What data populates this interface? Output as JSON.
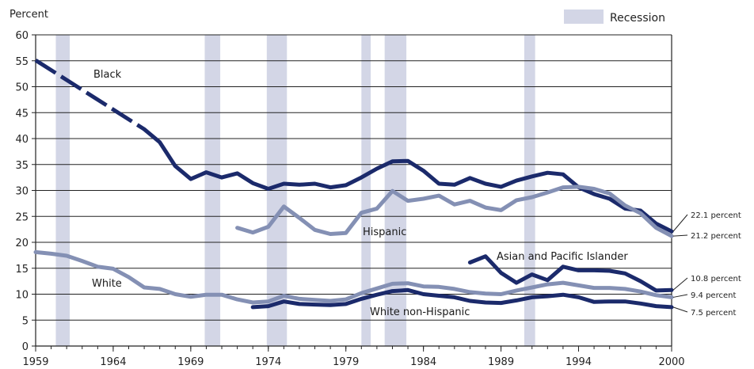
{
  "chart_data": {
    "type": "line",
    "title": "",
    "ylabel": "Percent",
    "xlabel": "",
    "xlim": [
      1959,
      2000
    ],
    "ylim": [
      0,
      60
    ],
    "x_ticks": [
      1959,
      1964,
      1969,
      1974,
      1979,
      1984,
      1989,
      1994,
      2000
    ],
    "y_ticks": [
      0,
      5,
      10,
      15,
      20,
      25,
      30,
      35,
      40,
      45,
      50,
      55,
      60
    ],
    "grid": "horizontal",
    "legend": {
      "label": "Recession",
      "placement": "top-right"
    },
    "recessions": [
      [
        1960.3,
        1961.2
      ],
      [
        1969.9,
        1970.9
      ],
      [
        1973.9,
        1975.2
      ],
      [
        1980.0,
        1980.6
      ],
      [
        1981.5,
        1982.9
      ],
      [
        1990.5,
        1991.2
      ]
    ],
    "series": [
      {
        "name": "Black",
        "color": "#1b2a6b",
        "dashed_until": 1966,
        "x": [
          1959,
          1966,
          1967,
          1968,
          1969,
          1970,
          1971,
          1972,
          1973,
          1974,
          1975,
          1976,
          1977,
          1978,
          1979,
          1980,
          1981,
          1982,
          1983,
          1984,
          1985,
          1986,
          1987,
          1988,
          1989,
          1990,
          1991,
          1992,
          1993,
          1994,
          1995,
          1996,
          1997,
          1998,
          1999,
          2000
        ],
        "values": [
          55.1,
          41.8,
          39.3,
          34.7,
          32.2,
          33.5,
          32.5,
          33.3,
          31.4,
          30.3,
          31.3,
          31.1,
          31.3,
          30.6,
          31.0,
          32.5,
          34.2,
          35.6,
          35.7,
          33.8,
          31.3,
          31.1,
          32.4,
          31.3,
          30.7,
          31.9,
          32.7,
          33.4,
          33.1,
          30.6,
          29.3,
          28.4,
          26.5,
          26.1,
          23.6,
          22.1
        ],
        "end_label": "22.1 percent"
      },
      {
        "name": "Hispanic",
        "color": "#8490b4",
        "x": [
          1972,
          1973,
          1974,
          1975,
          1976,
          1977,
          1978,
          1979,
          1980,
          1981,
          1982,
          1983,
          1984,
          1985,
          1986,
          1987,
          1988,
          1989,
          1990,
          1991,
          1992,
          1993,
          1994,
          1995,
          1996,
          1997,
          1998,
          1999,
          2000
        ],
        "values": [
          22.8,
          21.9,
          23.0,
          26.9,
          24.7,
          22.4,
          21.6,
          21.8,
          25.7,
          26.5,
          29.9,
          28.0,
          28.4,
          29.0,
          27.3,
          28.0,
          26.7,
          26.2,
          28.1,
          28.7,
          29.6,
          30.6,
          30.7,
          30.3,
          29.4,
          27.1,
          25.6,
          22.8,
          21.2
        ],
        "end_label": "21.2 percent"
      },
      {
        "name": "Asian and Pacific Islander",
        "color": "#1b2a6b",
        "x": [
          1987,
          1988,
          1989,
          1990,
          1991,
          1992,
          1993,
          1994,
          1995,
          1996,
          1997,
          1998,
          1999,
          2000
        ],
        "values": [
          16.1,
          17.3,
          14.1,
          12.2,
          13.8,
          12.7,
          15.3,
          14.6,
          14.6,
          14.5,
          14.0,
          12.5,
          10.7,
          10.8
        ],
        "end_label": "10.8 percent"
      },
      {
        "name": "White",
        "color": "#8490b4",
        "x": [
          1959,
          1960,
          1961,
          1962,
          1963,
          1964,
          1965,
          1966,
          1967,
          1968,
          1969,
          1970,
          1971,
          1972,
          1973,
          1974,
          1975,
          1976,
          1977,
          1978,
          1979,
          1980,
          1981,
          1982,
          1983,
          1984,
          1985,
          1986,
          1987,
          1988,
          1989,
          1990,
          1991,
          1992,
          1993,
          1994,
          1995,
          1996,
          1997,
          1998,
          1999,
          2000
        ],
        "values": [
          18.1,
          17.8,
          17.4,
          16.4,
          15.3,
          14.9,
          13.3,
          11.3,
          11.0,
          10.0,
          9.5,
          9.9,
          9.9,
          9.0,
          8.4,
          8.6,
          9.7,
          9.1,
          8.9,
          8.7,
          9.0,
          10.2,
          11.1,
          12.0,
          12.1,
          11.5,
          11.4,
          11.0,
          10.4,
          10.1,
          10.0,
          10.7,
          11.3,
          11.9,
          12.2,
          11.7,
          11.2,
          11.2,
          11.0,
          10.5,
          9.8,
          9.4
        ],
        "end_label": "9.4 percent"
      },
      {
        "name": "White non-Hispanic",
        "color": "#1b2a6b",
        "x": [
          1973,
          1974,
          1975,
          1976,
          1977,
          1978,
          1979,
          1980,
          1981,
          1982,
          1983,
          1984,
          1985,
          1986,
          1987,
          1988,
          1989,
          1990,
          1991,
          1992,
          1993,
          1994,
          1995,
          1996,
          1997,
          1998,
          1999,
          2000
        ],
        "values": [
          7.5,
          7.7,
          8.6,
          8.1,
          8.0,
          7.9,
          8.1,
          9.1,
          9.9,
          10.6,
          10.8,
          10.0,
          9.7,
          9.4,
          8.7,
          8.4,
          8.3,
          8.8,
          9.4,
          9.6,
          9.9,
          9.4,
          8.5,
          8.6,
          8.6,
          8.2,
          7.7,
          7.5
        ],
        "end_label": "7.5 percent"
      }
    ]
  }
}
